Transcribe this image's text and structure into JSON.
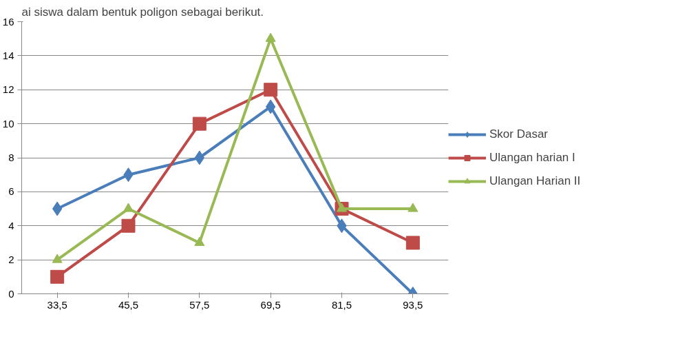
{
  "chart_data": {
    "type": "line",
    "annotations": [
      "ai siswa dalam bentuk poligon sebagai berikut."
    ],
    "categories": [
      "33,5",
      "45,5",
      "57,5",
      "69,5",
      "81,5",
      "93,5"
    ],
    "ylim": [
      0,
      16
    ],
    "yticks": [
      0,
      2,
      4,
      6,
      8,
      10,
      12,
      14,
      16
    ],
    "grid": "y",
    "legend": "right",
    "line_style": "solid",
    "series": [
      {
        "name": "Skor Dasar",
        "color": "#4a7ebb",
        "marker": "diamond",
        "values": [
          5,
          7,
          8,
          11,
          4,
          0
        ]
      },
      {
        "name": "Ulangan harian I",
        "color": "#be4b48",
        "marker": "square",
        "values": [
          1,
          4,
          10,
          12,
          5,
          3
        ]
      },
      {
        "name": "Ulangan Harian II",
        "color": "#98b954",
        "marker": "triangle",
        "values": [
          2,
          5,
          3,
          15,
          5,
          5
        ]
      }
    ]
  }
}
